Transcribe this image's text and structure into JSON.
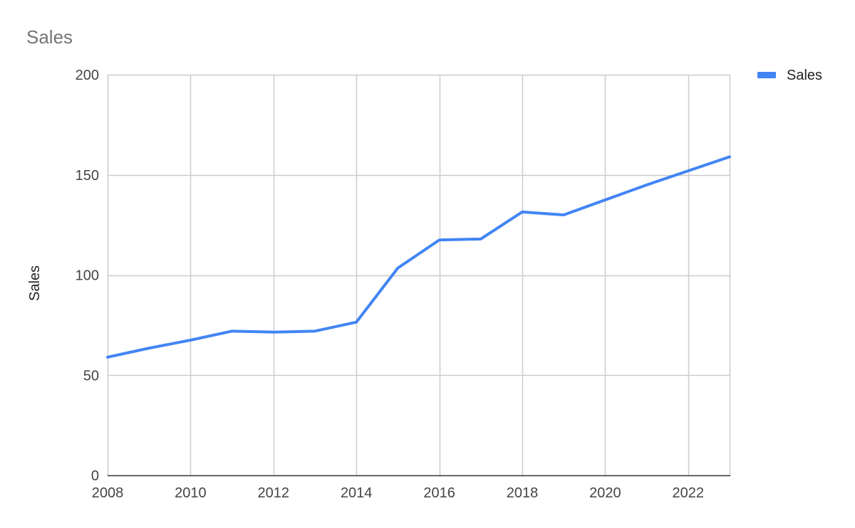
{
  "chart_data": {
    "type": "line",
    "title": "Sales",
    "xlabel": "",
    "ylabel": "Sales",
    "xlim": [
      2008,
      2023
    ],
    "ylim": [
      0,
      200
    ],
    "x_ticks": [
      2008,
      2010,
      2012,
      2014,
      2016,
      2018,
      2020,
      2022
    ],
    "y_ticks": [
      0,
      50,
      100,
      150,
      200
    ],
    "x_tick_labels": [
      "2008",
      "2010",
      "2012",
      "2014",
      "2016",
      "2018",
      "2020",
      "2022"
    ],
    "y_tick_labels": [
      "0",
      "50",
      "100",
      "150",
      "200"
    ],
    "grid": true,
    "legend_position": "top-right",
    "series": [
      {
        "name": "Sales",
        "color": "#4285f4",
        "x": [
          2008,
          2009,
          2010,
          2011,
          2012,
          2013,
          2014,
          2015,
          2016,
          2017,
          2018,
          2019,
          2020,
          2021,
          2022,
          2023
        ],
        "y": [
          59,
          63.5,
          67.5,
          72,
          71.5,
          72,
          76.5,
          103.5,
          117.5,
          118,
          131.5,
          130,
          137.5,
          145,
          152,
          159
        ]
      }
    ]
  }
}
